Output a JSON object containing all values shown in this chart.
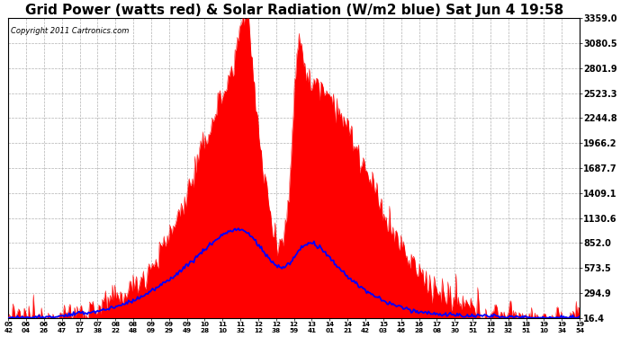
{
  "title": "Grid Power (watts red) & Solar Radiation (W/m2 blue) Sat Jun 4 19:58",
  "copyright": "Copyright 2011 Cartronics.com",
  "title_fontsize": 11,
  "background_color": "#ffffff",
  "plot_bg_color": "#ffffff",
  "grid_color": "#aaaaaa",
  "yticks": [
    16.4,
    294.9,
    573.5,
    852.0,
    1130.6,
    1409.1,
    1687.7,
    1966.2,
    2244.8,
    2523.3,
    2801.9,
    3080.5,
    3359.0
  ],
  "ymin": 16.4,
  "ymax": 3359.0,
  "red_color": "#ff0000",
  "blue_color": "#0000ff",
  "xtick_labels": [
    "05:42",
    "06:04",
    "06:26",
    "06:47",
    "07:17",
    "07:38",
    "08:22",
    "08:48",
    "09:09",
    "09:29",
    "09:49",
    "10:28",
    "11:10",
    "11:32",
    "12:12",
    "12:38",
    "12:59",
    "13:41",
    "14:01",
    "14:21",
    "14:42",
    "15:03",
    "15:46",
    "16:28",
    "17:08",
    "17:30",
    "17:51",
    "18:12",
    "18:32",
    "18:51",
    "19:10",
    "19:34",
    "19:54"
  ],
  "n_points": 500
}
